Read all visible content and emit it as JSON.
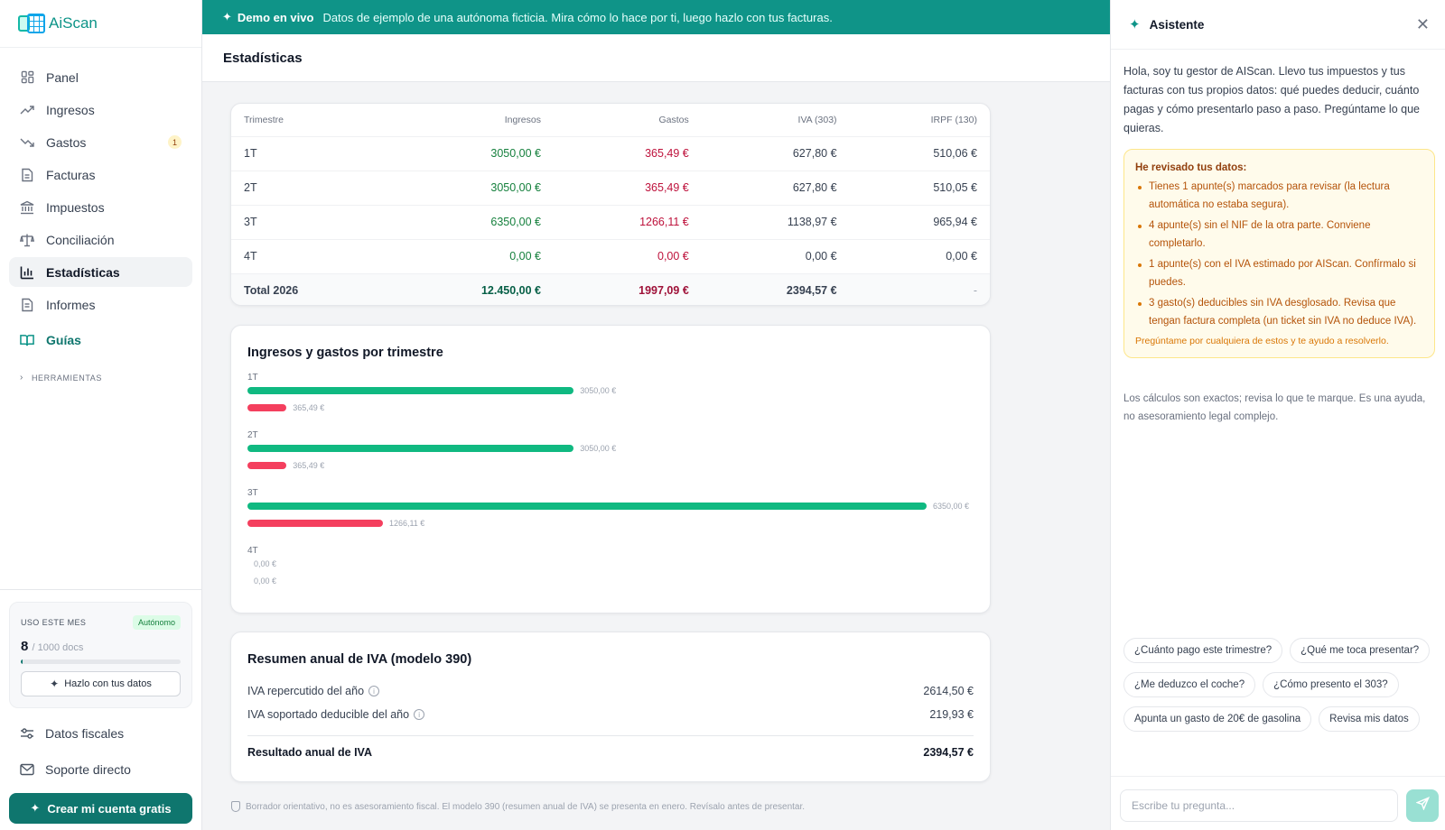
{
  "app": {
    "name": "AiScan"
  },
  "sidebar": {
    "items": [
      {
        "label": "Panel",
        "icon": "dashboard-icon"
      },
      {
        "label": "Ingresos",
        "icon": "trending-up-icon"
      },
      {
        "label": "Gastos",
        "icon": "trending-down-icon",
        "badge": "1"
      },
      {
        "label": "Facturas",
        "icon": "document-icon"
      },
      {
        "label": "Impuestos",
        "icon": "bank-icon"
      },
      {
        "label": "Conciliación",
        "icon": "scale-icon"
      },
      {
        "label": "Estadísticas",
        "icon": "bar-chart-icon",
        "active": true
      },
      {
        "label": "Informes",
        "icon": "report-icon"
      }
    ],
    "guides_label": "Guías",
    "tools_label": "HERRAMIENTAS",
    "usage": {
      "label": "USO ESTE MES",
      "plan": "Autónomo",
      "count": "8",
      "limit": "/ 1000 docs",
      "fraction": 0.008,
      "button": "Hazlo con tus datos"
    },
    "fiscal_label": "Datos fiscales",
    "support_label": "Soporte directo",
    "create_button": "Crear mi cuenta gratis"
  },
  "banner": {
    "title": "Demo en vivo",
    "message": "Datos de ejemplo de una autónoma ficticia. Mira cómo lo hace por ti, luego hazlo con tus facturas."
  },
  "page": {
    "title": "Estadísticas"
  },
  "quarter_table": {
    "headers": [
      "Trimestre",
      "Ingresos",
      "Gastos",
      "IVA (303)",
      "IRPF (130)"
    ],
    "rows": [
      [
        "1T",
        "3050,00 €",
        "365,49 €",
        "627,80 €",
        "510,06 €"
      ],
      [
        "2T",
        "3050,00 €",
        "365,49 €",
        "627,80 €",
        "510,05 €"
      ],
      [
        "3T",
        "6350,00 €",
        "1266,11 €",
        "1138,97 €",
        "965,94 €"
      ],
      [
        "4T",
        "0,00 €",
        "0,00 €",
        "0,00 €",
        "0,00 €"
      ]
    ],
    "total": [
      "Total 2026",
      "12.450,00 €",
      "1997,09 €",
      "2394,57 €",
      "-"
    ]
  },
  "chart_data": {
    "type": "bar",
    "title": "Ingresos y gastos por trimestre",
    "categories": [
      "1T",
      "2T",
      "3T",
      "4T"
    ],
    "series": [
      {
        "values": [
          3050.0,
          3050.0,
          6350.0,
          0.0
        ],
        "labels": [
          "3050,00 €",
          "3050,00 €",
          "6350,00 €",
          "0,00 €"
        ],
        "color": "#10b981"
      },
      {
        "values": [
          365.49,
          365.49,
          1266.11,
          0.0
        ],
        "labels": [
          "365,49 €",
          "365,49 €",
          "1266,11 €",
          "0,00 €"
        ],
        "color": "#f43f5e"
      }
    ],
    "xlim": [
      0,
      6350
    ],
    "orientation": "horizontal"
  },
  "iva_summary": {
    "title": "Resumen anual de IVA (modelo 390)",
    "repercutido_label": "IVA repercutido del año",
    "repercutido_value": "2614,50 €",
    "soportado_label": "IVA soportado deducible del año",
    "soportado_value": "219,93 €",
    "result_label": "Resultado anual de IVA",
    "result_value": "2394,57 €"
  },
  "footnote": "Borrador orientativo, no es asesoramiento fiscal. El modelo 390 (resumen anual de IVA) se presenta en enero. Revísalo antes de presentar.",
  "assistant": {
    "title": "Asistente",
    "intro": "Hola, soy tu gestor de AIScan. Llevo tus impuestos y tus facturas con tus propios datos: qué puedes deducir, cuánto pagas y cómo presentarlo paso a paso. Pregúntame lo que quieras.",
    "review": {
      "title": "He revisado tus datos:",
      "items": [
        "Tienes 1 apunte(s) marcados para revisar (la lectura automática no estaba segura).",
        "4 apunte(s) sin el NIF de la otra parte. Conviene completarlo.",
        "1 apunte(s) con el IVA estimado por AIScan. Confírmalo si puedes.",
        "3 gasto(s) deducibles sin IVA desglosado. Revisa que tengan factura completa (un ticket sin IVA no deduce IVA)."
      ],
      "footer": "Pregúntame por cualquiera de estos y te ayudo a resolverlo."
    },
    "note": "Los cálculos son exactos; revisa lo que te marque. Es una ayuda, no asesoramiento legal complejo.",
    "suggestions": [
      "¿Cuánto pago este trimestre?",
      "¿Qué me toca presentar?",
      "¿Me deduzco el coche?",
      "¿Cómo presento el 303?",
      "Apunta un gasto de 20€ de gasolina",
      "Revisa mis datos"
    ],
    "input_placeholder": "Escribe tu pregunta..."
  },
  "colors": {
    "brand": "#0f766e",
    "banner": "#0f9488",
    "income": "#10b981",
    "expense": "#f43f5e",
    "warning_bg": "#fffbeb"
  }
}
